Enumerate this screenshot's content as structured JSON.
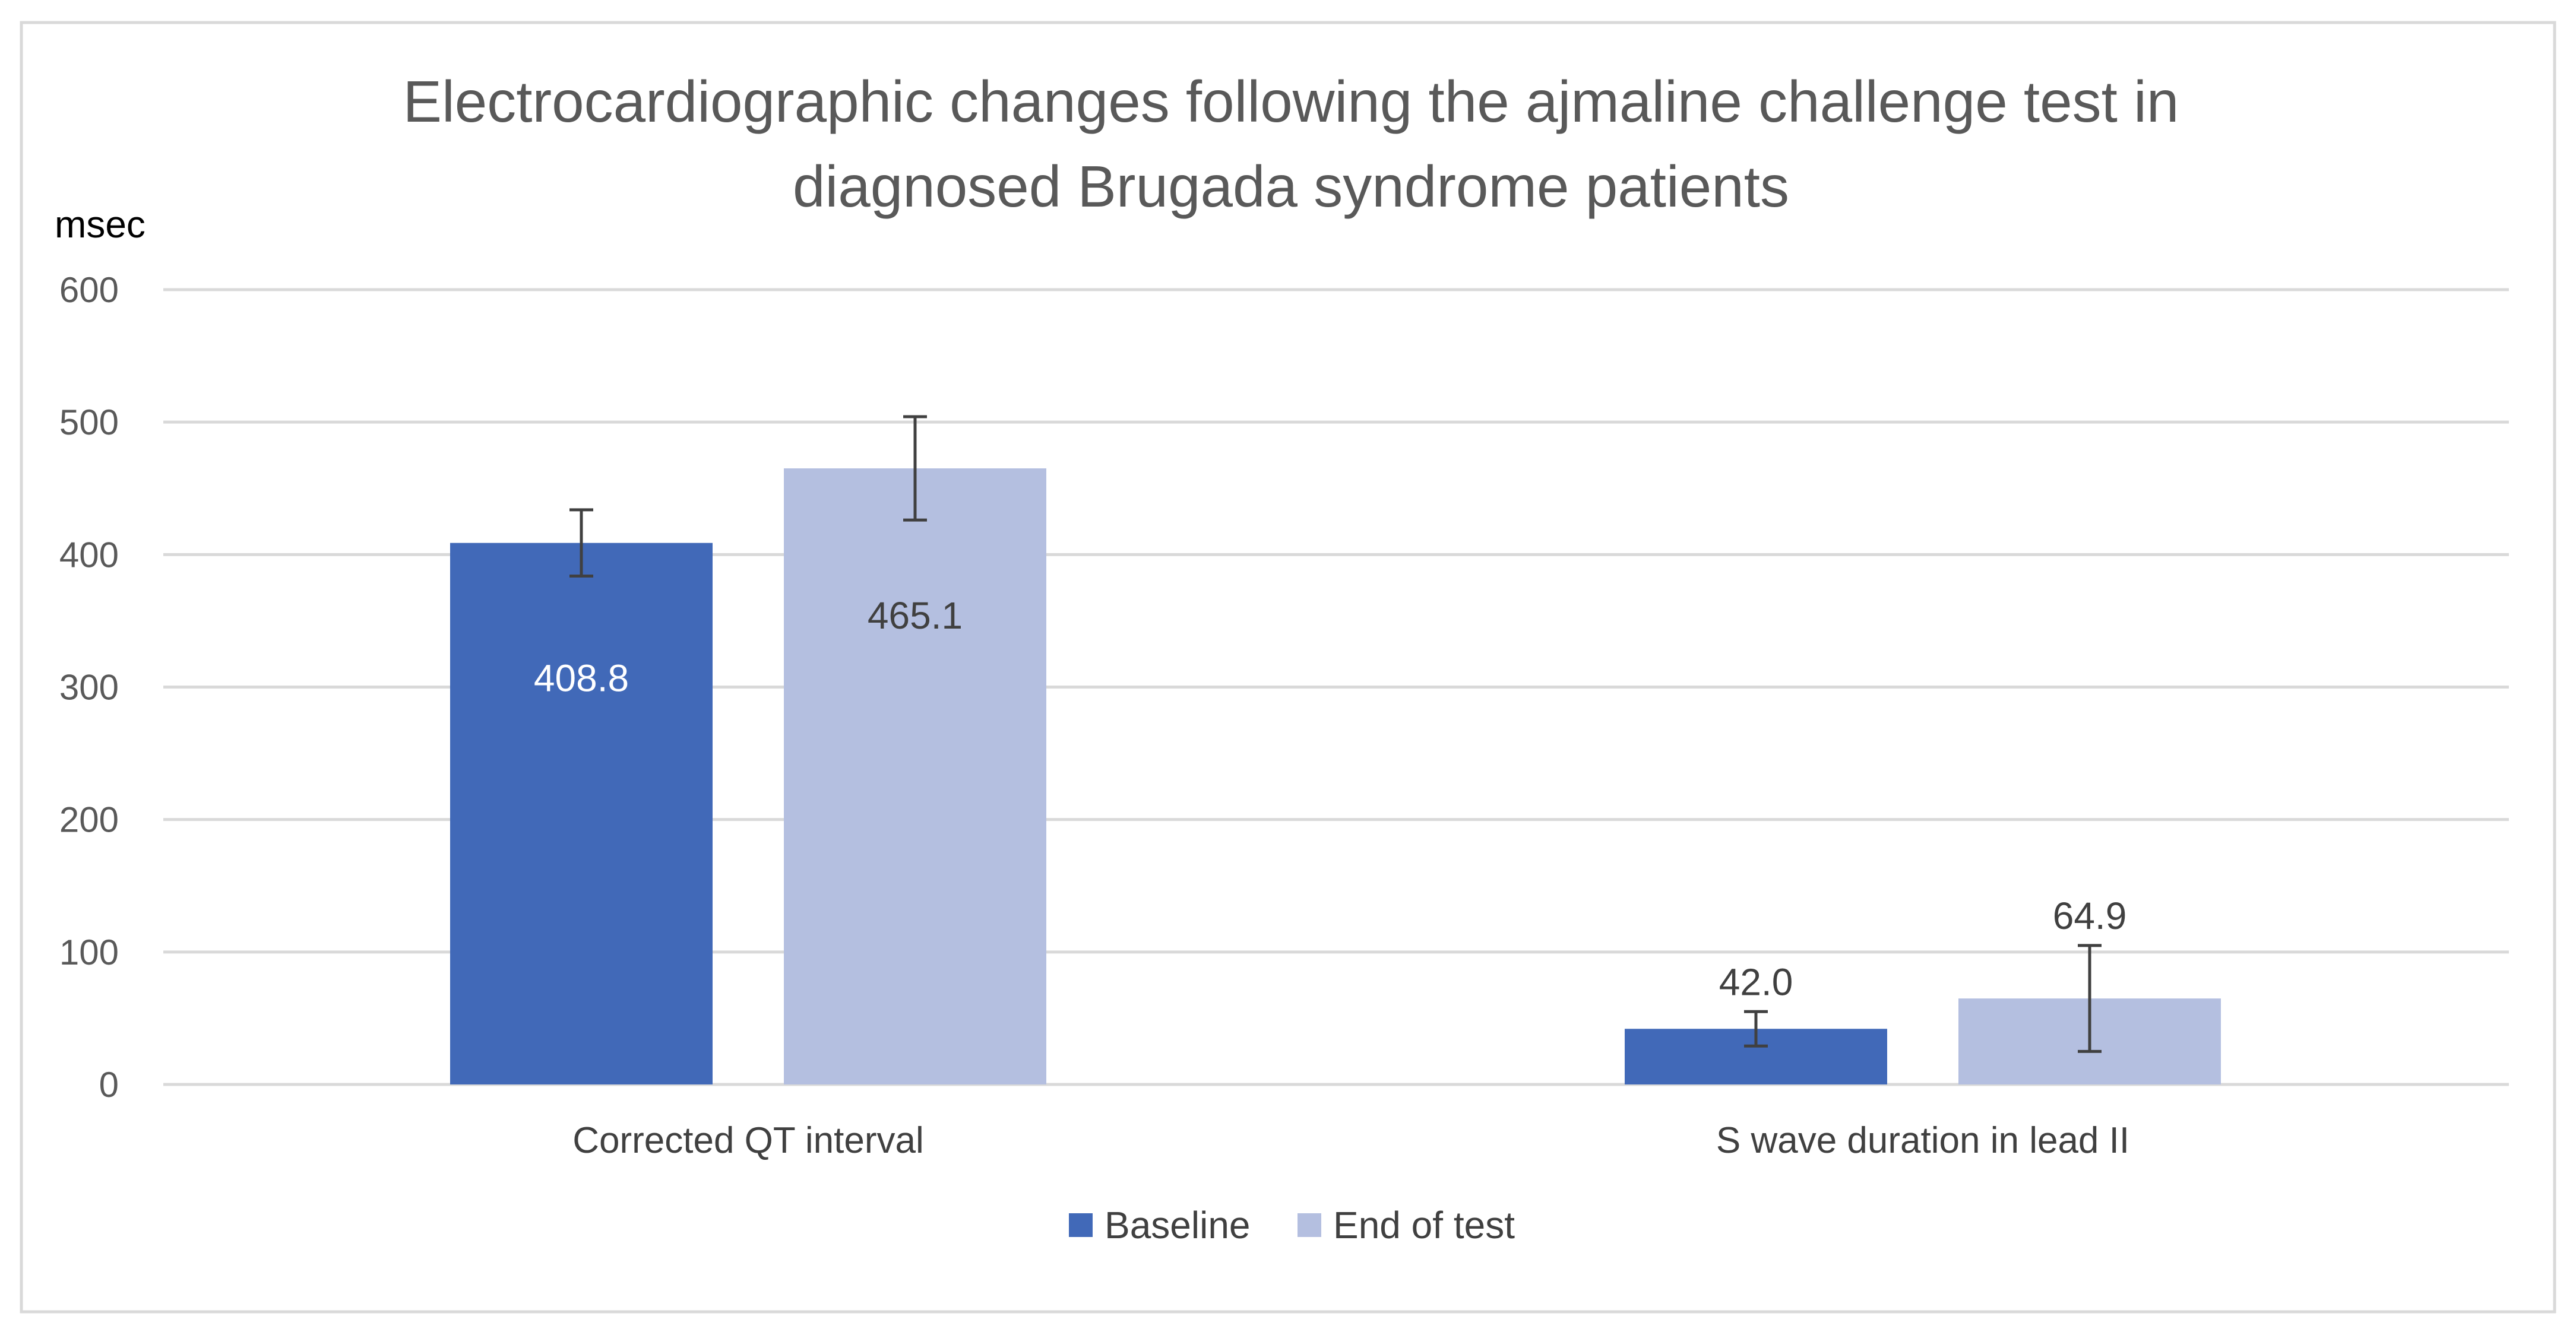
{
  "chart_data": {
    "type": "bar",
    "title": "Electrocardiographic changes following the ajmaline challenge test in diagnosed Brugada syndrome patients",
    "title_lines": [
      "Electrocardiographic changes following the ajmaline challenge test in",
      "diagnosed Brugada syndrome patients"
    ],
    "ylabel": "msec",
    "xlabel": "",
    "ylim": [
      0,
      600
    ],
    "yticks": [
      0,
      100,
      200,
      300,
      400,
      500,
      600
    ],
    "grid": true,
    "categories": [
      "Corrected QT interval",
      "S wave duration in lead II"
    ],
    "series": [
      {
        "name": "Baseline",
        "color": "#4169b8",
        "values": [
          408.8,
          42.0
        ],
        "labels": [
          "408.8",
          "42.0"
        ],
        "label_position": [
          "inside",
          "above"
        ],
        "label_color": [
          "#ffffff",
          "#404040"
        ],
        "error": [
          25,
          13
        ]
      },
      {
        "name": "End of test",
        "color": "#b4bfe0",
        "values": [
          465.1,
          64.9
        ],
        "labels": [
          "465.1",
          "64.9"
        ],
        "label_position": [
          "inside",
          "above"
        ],
        "label_color": [
          "#404040",
          "#404040"
        ],
        "error": [
          39,
          40
        ]
      }
    ],
    "legend_position": "bottom-center"
  }
}
